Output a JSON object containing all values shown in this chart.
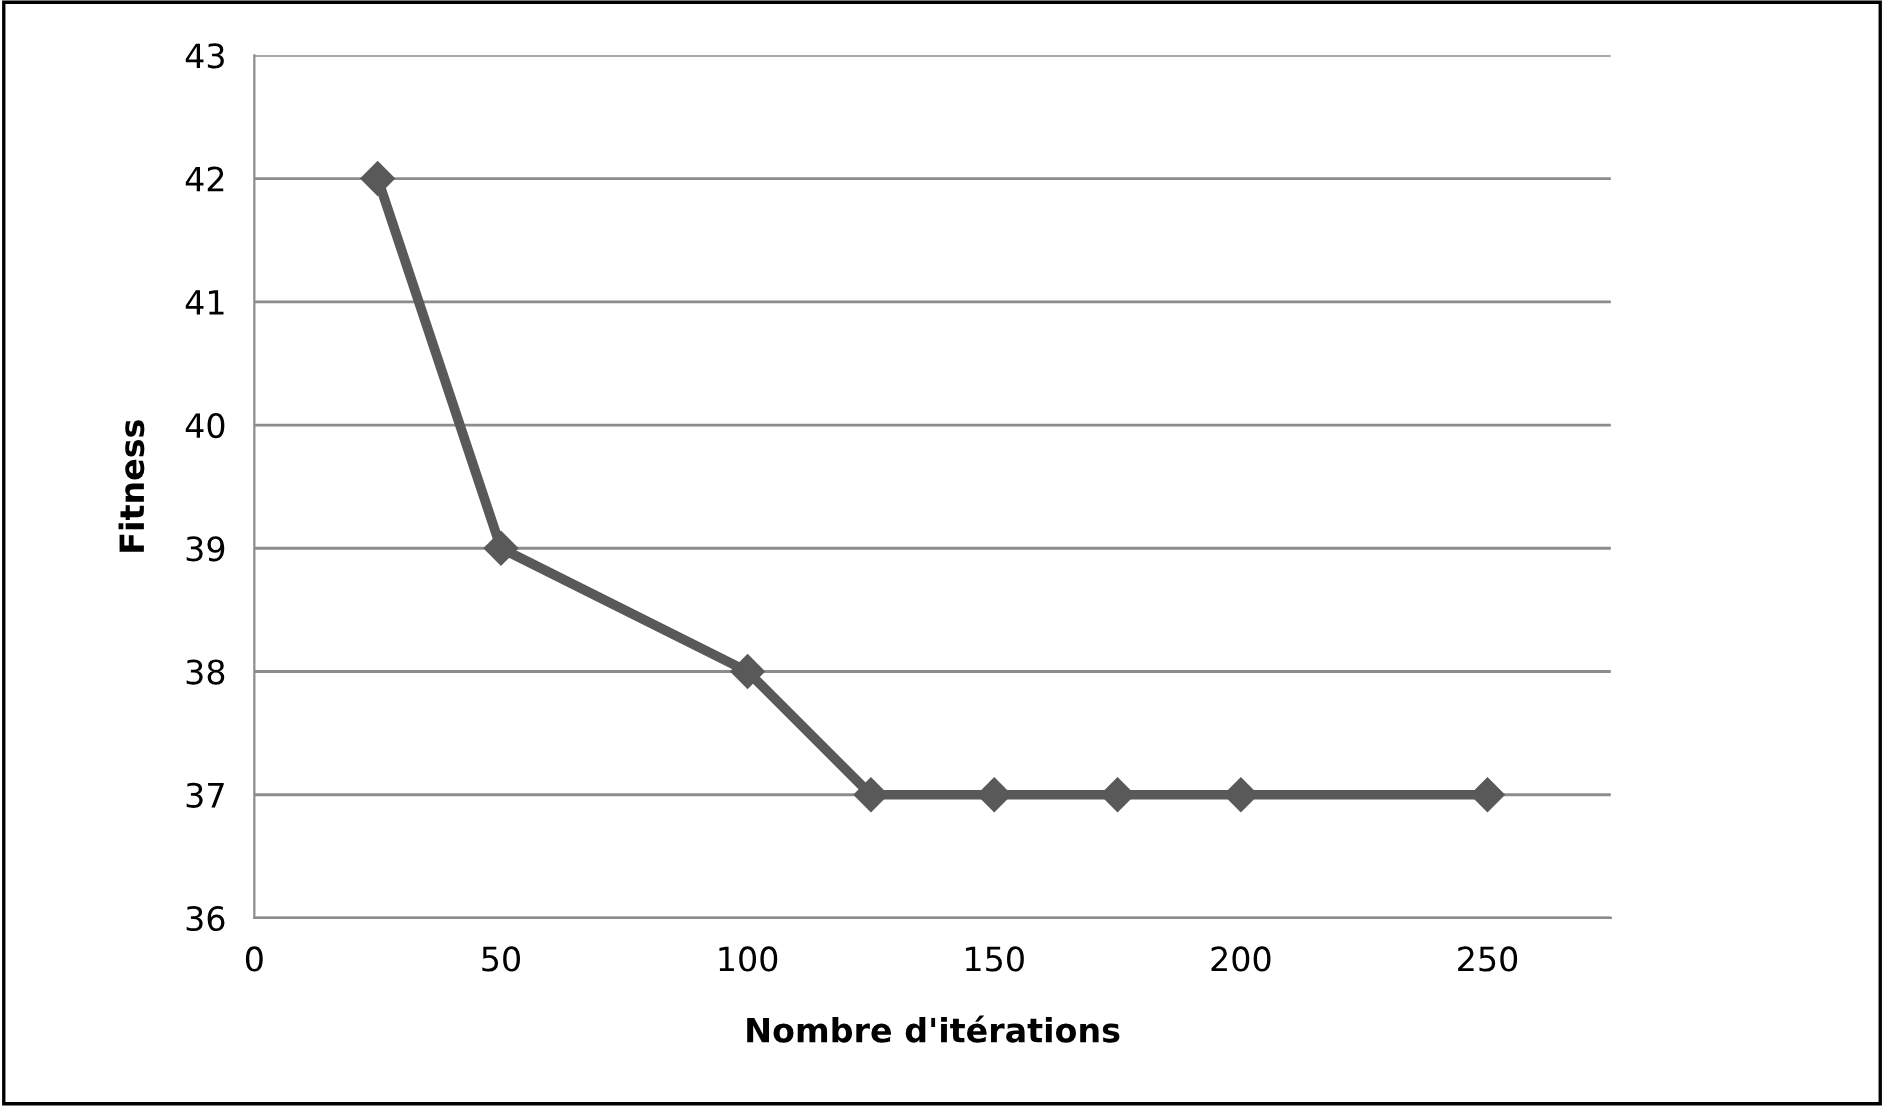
{
  "chart_data": {
    "type": "line",
    "xlabel": "Nombre d'itérations",
    "ylabel": "Fitness",
    "x": [
      25,
      50,
      100,
      125,
      150,
      175,
      200,
      250
    ],
    "series": [
      {
        "color": "#595959",
        "values": [
          42,
          39,
          38,
          37,
          37,
          37,
          37,
          37
        ]
      }
    ],
    "xlim": [
      0,
      275
    ],
    "xticks": [
      0,
      50,
      100,
      150,
      200,
      250
    ],
    "ylim": [
      36,
      43
    ],
    "yticks": [
      36,
      37,
      38,
      39,
      40,
      41,
      42,
      43
    ],
    "grid": "y",
    "marker": "diamond",
    "line_style": "solid"
  }
}
